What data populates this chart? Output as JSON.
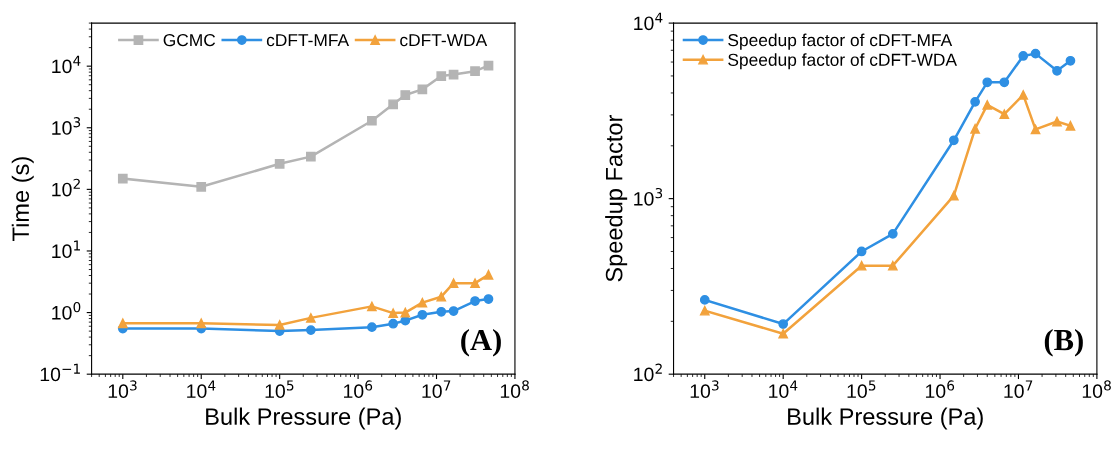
{
  "chart_data": [
    {
      "type": "line",
      "xlabel": "Bulk Pressure (Pa)",
      "ylabel": "Time (s)",
      "log": "xy",
      "legend": "top",
      "grid": false,
      "x": [
        1000,
        10000,
        100000,
        250000,
        1500000,
        2800000,
        4000000,
        6600000,
        11500000,
        16500000,
        31000000,
        46000000
      ],
      "xlim": [
        400,
        100000000
      ],
      "xticks": [
        {
          "value": 1000,
          "label": "10$^{3}$"
        },
        {
          "value": 10000,
          "label": "10$^{4}$"
        },
        {
          "value": 100000,
          "label": "10$^{5}$"
        },
        {
          "value": 1000000,
          "label": "10$^{6}$"
        },
        {
          "value": 10000000,
          "label": "10$^{7}$"
        },
        {
          "value": 100000000,
          "label": "10$^{8}$"
        }
      ],
      "ylim": [
        0.1,
        50000
      ],
      "yticks": [
        {
          "value": 0.1,
          "label": "10$^{−1}$"
        },
        {
          "value": 1,
          "label": "10$^{0}$"
        },
        {
          "value": 10,
          "label": "10$^{1}$"
        },
        {
          "value": 100,
          "label": "10$^{2}$"
        },
        {
          "value": 1000,
          "label": "10$^{3}$"
        },
        {
          "value": 10000,
          "label": "10$^{4}$"
        }
      ],
      "series": [
        {
          "name": "GCMC",
          "color": "#b4b4b4",
          "marker": "square",
          "values": [
            150,
            110,
            260,
            340,
            1300,
            2400,
            3400,
            4200,
            6900,
            7300,
            8300,
            10200
          ]
        },
        {
          "name": "cDFT-MFA",
          "color": "#2e8fe3",
          "marker": "circle",
          "values": [
            0.55,
            0.55,
            0.5,
            0.52,
            0.58,
            0.66,
            0.74,
            0.92,
            1.03,
            1.06,
            1.54,
            1.66
          ]
        },
        {
          "name": "cDFT-WDA",
          "color": "#f2a23c",
          "marker": "triangle",
          "values": [
            0.67,
            0.67,
            0.63,
            0.82,
            1.26,
            0.98,
            1.0,
            1.45,
            1.81,
            3.0,
            3.0,
            4.1
          ]
        }
      ],
      "annotations": [
        "(A)"
      ]
    },
    {
      "type": "line",
      "xlabel": "Bulk Pressure (Pa)",
      "ylabel": "Speedup Factor",
      "log": "xy",
      "legend": "top left",
      "grid": false,
      "x": [
        1000,
        10000,
        100000,
        250000,
        1500000,
        2800000,
        4000000,
        6600000,
        11500000,
        16500000,
        31000000,
        46000000
      ],
      "xlim": [
        400,
        100000000
      ],
      "xticks": [
        {
          "value": 1000,
          "label": "10$^{3}$"
        },
        {
          "value": 10000,
          "label": "10$^{4}$"
        },
        {
          "value": 100000,
          "label": "10$^{5}$"
        },
        {
          "value": 1000000,
          "label": "10$^{6}$"
        },
        {
          "value": 10000000,
          "label": "10$^{7}$"
        },
        {
          "value": 100000000,
          "label": "10$^{8}$"
        }
      ],
      "ylim": [
        100,
        10000
      ],
      "yticks": [
        {
          "value": 100,
          "label": "10$^{2}$"
        },
        {
          "value": 1000,
          "label": "10$^{3}$"
        },
        {
          "value": 10000,
          "label": "10$^{4}$"
        }
      ],
      "series": [
        {
          "name": "Speedup factor of cDFT-MFA",
          "color": "#2e8fe3",
          "marker": "circle",
          "values": [
            265,
            193,
            500,
            630,
            2150,
            3560,
            4600,
            4600,
            6500,
            6700,
            5350,
            6100
          ]
        },
        {
          "name": "Speedup factor of cDFT-WDA",
          "color": "#f2a23c",
          "marker": "triangle",
          "values": [
            230,
            170,
            415,
            415,
            1040,
            2500,
            3420,
            3030,
            3900,
            2480,
            2750,
            2600
          ]
        }
      ],
      "annotations": [
        "(B)"
      ]
    }
  ]
}
